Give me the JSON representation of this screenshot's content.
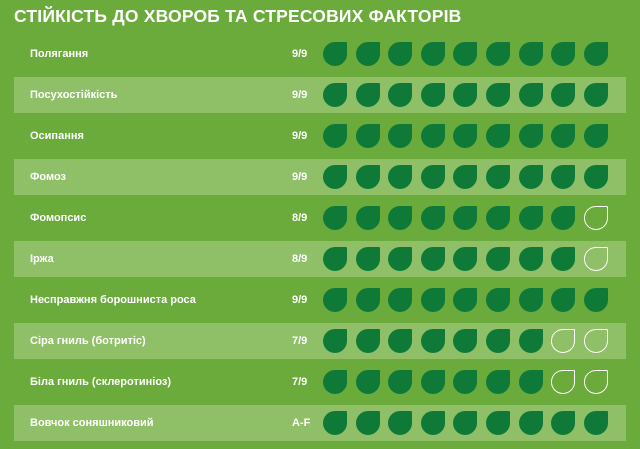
{
  "title": "СТІЙКІСТЬ ДО ХВОРОБ ТА СТРЕСОВИХ ФАКТОРІВ",
  "colors": {
    "background": "#6bab3c",
    "stripe": "#8fc067",
    "leaf_filled": "#0f7a37",
    "leaf_empty_stroke": "#ffffff"
  },
  "icon": "leaf-icon",
  "max_leaves": 9,
  "rows": [
    {
      "label": "Полягання",
      "score": "9/9",
      "filled": 9
    },
    {
      "label": "Посухостійкість",
      "score": "9/9",
      "filled": 9
    },
    {
      "label": "Осипання",
      "score": "9/9",
      "filled": 9
    },
    {
      "label": "Фомоз",
      "score": "9/9",
      "filled": 9
    },
    {
      "label": "Фомопсис",
      "score": "8/9",
      "filled": 8
    },
    {
      "label": "Іржа",
      "score": "8/9",
      "filled": 8
    },
    {
      "label": "Несправжня борошниста роса",
      "score": "9/9",
      "filled": 9
    },
    {
      "label": "Сіра гниль (ботритіс)",
      "score": "7/9",
      "filled": 7
    },
    {
      "label": "Біла гниль (склеротиніоз)",
      "score": "7/9",
      "filled": 7
    },
    {
      "label": "Вовчок соняшниковий",
      "score": "A-F",
      "filled": 9
    }
  ]
}
